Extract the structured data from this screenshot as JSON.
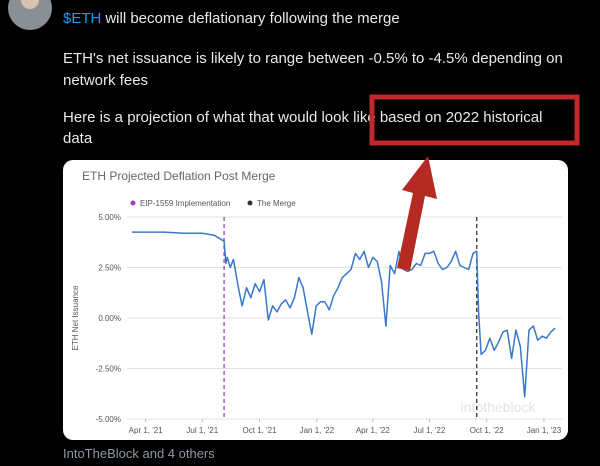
{
  "tweet": {
    "cashtag": "$ETH",
    "first_line": "will become deflationary following the merge",
    "lines": [
      "ETH's net issuance is likely to range between -0.5% to -4.5% depending on",
      "network fees",
      "Here is a projection of what that would look like based on 2022 historical",
      "data"
    ],
    "footer": "IntoTheBlock and 4 others"
  },
  "chart_data": {
    "type": "line",
    "title": "ETH Projected Deflation Post Merge",
    "ylabel": "ETH Net Issuance",
    "watermark": "intotheblock",
    "color": "#3a78c9",
    "grid": true,
    "xlim": [
      "2021-03-02",
      "2023-01-30"
    ],
    "xticks": [
      {
        "value": "2021-04-01",
        "label": "Apr 1, '21"
      },
      {
        "value": "2021-07-01",
        "label": "Jul 1, '21"
      },
      {
        "value": "2021-10-01",
        "label": "Oct 1, '21"
      },
      {
        "value": "2022-01-01",
        "label": "Jan 1, '22"
      },
      {
        "value": "2022-04-01",
        "label": "Apr 1, '22"
      },
      {
        "value": "2022-07-01",
        "label": "Jul 1, '22"
      },
      {
        "value": "2022-10-01",
        "label": "Oct 1, '22"
      },
      {
        "value": "2023-01-01",
        "label": "Jan 1, '23"
      }
    ],
    "ylim": [
      -5,
      5
    ],
    "yticks": [
      {
        "value": -5,
        "label": "-5.00%"
      },
      {
        "value": -2.5,
        "label": "-2.50%"
      },
      {
        "value": 0,
        "label": "0.00%"
      },
      {
        "value": 2.5,
        "label": "2.50%"
      },
      {
        "value": 5,
        "label": "5.00%"
      }
    ],
    "events": [
      {
        "x": "2021-08-05",
        "label": "EIP-1559 Implementation",
        "color": "#a13cc0"
      },
      {
        "x": "2022-09-15",
        "label": "The Merge",
        "color": "#333333"
      }
    ],
    "x": [
      "2021-03-10",
      "2021-04-01",
      "2021-05-01",
      "2021-06-01",
      "2021-07-01",
      "2021-07-20",
      "2021-08-05",
      "2021-08-08",
      "2021-08-10",
      "2021-08-15",
      "2021-08-20",
      "2021-08-28",
      "2021-09-03",
      "2021-09-10",
      "2021-09-17",
      "2021-09-24",
      "2021-10-01",
      "2021-10-08",
      "2021-10-15",
      "2021-10-22",
      "2021-10-29",
      "2021-11-05",
      "2021-11-12",
      "2021-11-19",
      "2021-11-26",
      "2021-12-03",
      "2021-12-10",
      "2021-12-17",
      "2021-12-24",
      "2021-12-31",
      "2022-01-07",
      "2022-01-14",
      "2022-01-21",
      "2022-01-28",
      "2022-02-04",
      "2022-02-11",
      "2022-02-18",
      "2022-02-25",
      "2022-03-04",
      "2022-03-11",
      "2022-03-18",
      "2022-03-25",
      "2022-04-01",
      "2022-04-08",
      "2022-04-15",
      "2022-04-22",
      "2022-04-29",
      "2022-05-06",
      "2022-05-13",
      "2022-05-20",
      "2022-05-27",
      "2022-06-03",
      "2022-06-10",
      "2022-06-17",
      "2022-06-24",
      "2022-07-01",
      "2022-07-08",
      "2022-07-15",
      "2022-07-22",
      "2022-07-29",
      "2022-08-05",
      "2022-08-12",
      "2022-08-19",
      "2022-08-26",
      "2022-09-02",
      "2022-09-09",
      "2022-09-15",
      "2022-09-18",
      "2022-09-22",
      "2022-09-29",
      "2022-10-06",
      "2022-10-13",
      "2022-10-20",
      "2022-10-27",
      "2022-11-03",
      "2022-11-10",
      "2022-11-17",
      "2022-11-24",
      "2022-12-01",
      "2022-12-08",
      "2022-12-15",
      "2022-12-22",
      "2022-12-29",
      "2023-01-05",
      "2023-01-12",
      "2023-01-19"
    ],
    "values": [
      4.25,
      4.25,
      4.25,
      4.2,
      4.2,
      4.1,
      3.8,
      2.7,
      3.0,
      2.5,
      2.9,
      1.5,
      0.6,
      1.5,
      1.0,
      1.7,
      1.3,
      1.9,
      -0.1,
      0.6,
      0.3,
      0.7,
      0.9,
      0.5,
      1.0,
      2.0,
      1.5,
      0.3,
      -0.8,
      0.6,
      0.8,
      0.8,
      0.4,
      1.1,
      1.5,
      2.0,
      2.2,
      2.4,
      3.2,
      2.9,
      3.3,
      2.5,
      3.0,
      2.8,
      1.8,
      -0.4,
      2.6,
      2.2,
      3.3,
      2.4,
      2.3,
      2.4,
      2.7,
      2.6,
      3.2,
      3.2,
      3.3,
      2.7,
      2.4,
      2.5,
      2.8,
      3.3,
      2.6,
      2.5,
      2.4,
      3.2,
      3.3,
      0.3,
      -1.8,
      -1.6,
      -1.0,
      -1.6,
      -1.2,
      -0.7,
      -0.6,
      -2.0,
      -0.6,
      -1.4,
      -3.9,
      -0.6,
      -0.4,
      -1.1,
      -0.9,
      -1.0,
      -0.7,
      -0.5
    ]
  }
}
